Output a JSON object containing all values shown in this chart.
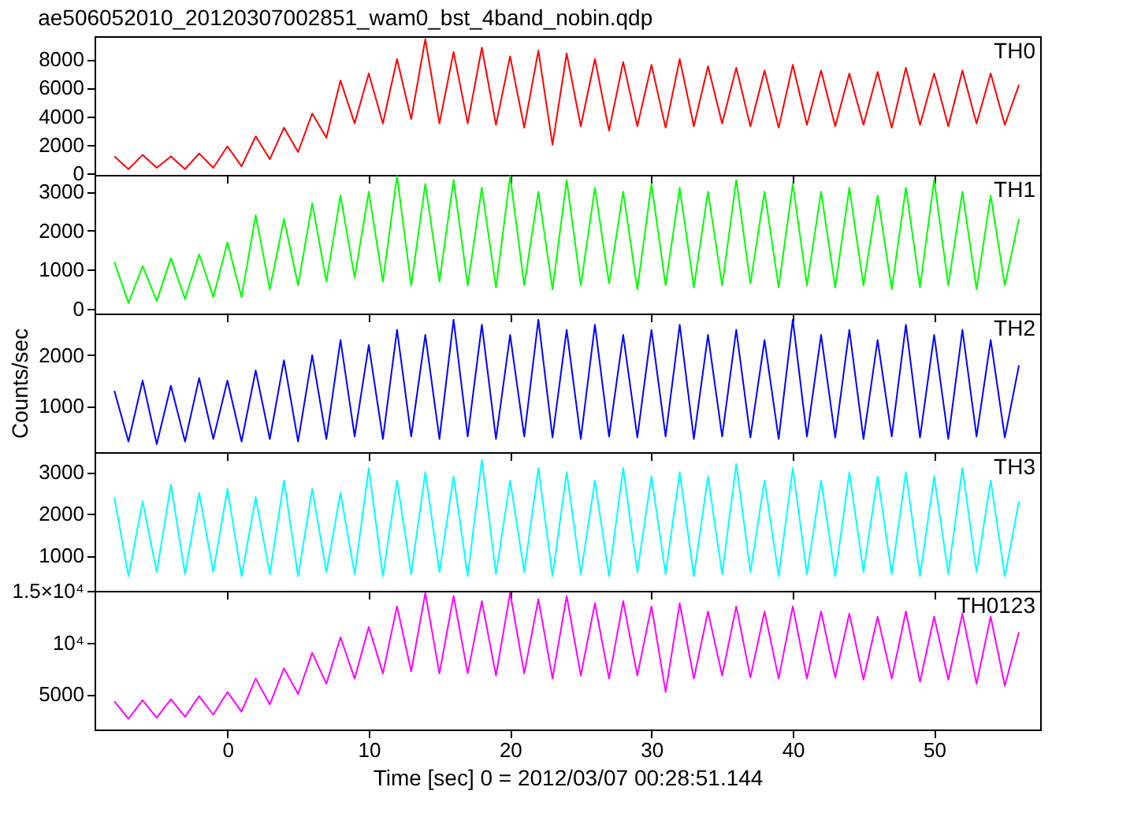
{
  "chart_data": [
    {
      "type": "line",
      "title": "ae506052010_20120307002851_wam0_bst_4band_nobin.qdp",
      "xlim": [
        -9.4,
        57.5
      ],
      "xticks": [
        0,
        10,
        20,
        30,
        40,
        50
      ],
      "ylim": [
        -100,
        9600
      ],
      "yticks": [
        0,
        2000,
        4000,
        6000,
        8000
      ],
      "tick_labels": "y",
      "x": [
        -8,
        -7,
        -6,
        -5,
        -4,
        -3,
        -2,
        -1,
        0,
        1,
        2,
        3,
        4,
        5,
        6,
        7,
        8,
        9,
        10,
        11,
        12,
        13,
        14,
        15,
        16,
        17,
        18,
        19,
        20,
        21,
        22,
        23,
        24,
        25,
        26,
        27,
        28,
        29,
        30,
        31,
        32,
        33,
        34,
        35,
        36,
        37,
        38,
        39,
        40,
        41,
        42,
        43,
        44,
        45,
        46,
        47,
        48,
        49,
        50,
        51,
        52,
        53,
        54,
        55,
        56
      ],
      "series": [
        {
          "name": "TH0",
          "color": "#ff0000",
          "values": [
            1200,
            300,
            1300,
            400,
            1200,
            300,
            1400,
            400,
            1900,
            500,
            2600,
            1000,
            3200,
            1500,
            4200,
            2500,
            6500,
            3500,
            7000,
            3500,
            8000,
            3800,
            9400,
            3500,
            8500,
            3500,
            8800,
            3400,
            8200,
            3200,
            8600,
            2000,
            8400,
            3300,
            8000,
            3000,
            7800,
            3300,
            7600,
            3200,
            8000,
            3300,
            7500,
            3500,
            7400,
            3300,
            7200,
            3200,
            7600,
            3400,
            7200,
            3300,
            7000,
            3400,
            7100,
            3200,
            7400,
            3400,
            7000,
            3300,
            7200,
            3500,
            7000,
            3400,
            6200
          ]
        }
      ]
    },
    {
      "type": "line",
      "xlim": [
        -9.4,
        57.5
      ],
      "xticks": [
        0,
        10,
        20,
        30,
        40,
        50
      ],
      "ylim": [
        -120,
        3430
      ],
      "yticks": [
        0,
        1000,
        2000,
        3000
      ],
      "tick_labels": "y",
      "x": [
        -8,
        -7,
        -6,
        -5,
        -4,
        -3,
        -2,
        -1,
        0,
        1,
        2,
        3,
        4,
        5,
        6,
        7,
        8,
        9,
        10,
        11,
        12,
        13,
        14,
        15,
        16,
        17,
        18,
        19,
        20,
        21,
        22,
        23,
        24,
        25,
        26,
        27,
        28,
        29,
        30,
        31,
        32,
        33,
        34,
        35,
        36,
        37,
        38,
        39,
        40,
        41,
        42,
        43,
        44,
        45,
        46,
        47,
        48,
        49,
        50,
        51,
        52,
        53,
        54,
        55,
        56
      ],
      "series": [
        {
          "name": "TH1",
          "color": "#00ff00",
          "values": [
            1200,
            150,
            1100,
            200,
            1300,
            250,
            1400,
            300,
            1700,
            300,
            2400,
            500,
            2300,
            600,
            2700,
            700,
            2900,
            800,
            3000,
            700,
            3400,
            600,
            3200,
            700,
            3300,
            600,
            3100,
            550,
            3400,
            600,
            3000,
            500,
            3300,
            600,
            3100,
            650,
            3000,
            500,
            3200,
            600,
            3100,
            550,
            3000,
            600,
            3300,
            650,
            3000,
            550,
            3200,
            600,
            3000,
            550,
            3100,
            600,
            2900,
            500,
            3100,
            550,
            3300,
            600,
            3000,
            500,
            2900,
            600,
            2300
          ]
        }
      ]
    },
    {
      "type": "line",
      "ylabel": "Counts/sec",
      "xlim": [
        -9.4,
        57.5
      ],
      "xticks": [
        0,
        10,
        20,
        30,
        40,
        50
      ],
      "ylim": [
        90,
        2820
      ],
      "yticks": [
        1000,
        2000
      ],
      "tick_labels": "y",
      "x": [
        -8,
        -7,
        -6,
        -5,
        -4,
        -3,
        -2,
        -1,
        0,
        1,
        2,
        3,
        4,
        5,
        6,
        7,
        8,
        9,
        10,
        11,
        12,
        13,
        14,
        15,
        16,
        17,
        18,
        19,
        20,
        21,
        22,
        23,
        24,
        25,
        26,
        27,
        28,
        29,
        30,
        31,
        32,
        33,
        34,
        35,
        36,
        37,
        38,
        39,
        40,
        41,
        42,
        43,
        44,
        45,
        46,
        47,
        48,
        49,
        50,
        51,
        52,
        53,
        54,
        55,
        56
      ],
      "series": [
        {
          "name": "TH2",
          "color": "#0000ff",
          "values": [
            1300,
            300,
            1500,
            250,
            1400,
            300,
            1550,
            350,
            1500,
            300,
            1700,
            350,
            1900,
            300,
            2000,
            350,
            2300,
            400,
            2200,
            350,
            2500,
            400,
            2400,
            350,
            2700,
            400,
            2600,
            350,
            2400,
            400,
            2700,
            380,
            2500,
            350,
            2600,
            400,
            2400,
            380,
            2500,
            400,
            2600,
            350,
            2400,
            400,
            2500,
            380,
            2300,
            350,
            2700,
            400,
            2400,
            380,
            2500,
            350,
            2300,
            400,
            2600,
            380,
            2400,
            350,
            2500,
            400,
            2300,
            380,
            1800
          ]
        }
      ]
    },
    {
      "type": "line",
      "xlim": [
        -9.4,
        57.5
      ],
      "xticks": [
        0,
        10,
        20,
        30,
        40,
        50
      ],
      "ylim": [
        150,
        3480
      ],
      "yticks": [
        1000,
        2000,
        3000
      ],
      "tick_labels": "y",
      "x": [
        -8,
        -7,
        -6,
        -5,
        -4,
        -3,
        -2,
        -1,
        0,
        1,
        2,
        3,
        4,
        5,
        6,
        7,
        8,
        9,
        10,
        11,
        12,
        13,
        14,
        15,
        16,
        17,
        18,
        19,
        20,
        21,
        22,
        23,
        24,
        25,
        26,
        27,
        28,
        29,
        30,
        31,
        32,
        33,
        34,
        35,
        36,
        37,
        38,
        39,
        40,
        41,
        42,
        43,
        44,
        45,
        46,
        47,
        48,
        49,
        50,
        51,
        52,
        53,
        54,
        55,
        56
      ],
      "series": [
        {
          "name": "TH3",
          "color": "#00ffff",
          "values": [
            2400,
            500,
            2300,
            600,
            2700,
            550,
            2500,
            600,
            2600,
            500,
            2400,
            550,
            2800,
            500,
            2600,
            600,
            2500,
            550,
            3100,
            500,
            2800,
            550,
            3000,
            600,
            2900,
            500,
            3300,
            550,
            2800,
            600,
            3100,
            500,
            3000,
            550,
            2800,
            500,
            3100,
            600,
            2900,
            550,
            3000,
            500,
            2900,
            550,
            3200,
            600,
            2800,
            500,
            3100,
            550,
            2800,
            500,
            3000,
            600,
            2900,
            550,
            3000,
            500,
            2900,
            550,
            3100,
            600,
            2800,
            500,
            2300
          ]
        }
      ]
    },
    {
      "type": "line",
      "xlabel": "Time [sec] 0 = 2012/03/07 00:28:51.144",
      "xlim": [
        -9.4,
        57.5
      ],
      "xticks": [
        0,
        10,
        20,
        30,
        40,
        50
      ],
      "ylim": [
        1570,
        15000
      ],
      "yticks": [
        5000,
        {
          "value": 10000,
          "label": "10⁴"
        },
        {
          "value": 15000,
          "label": "1.5×10⁴"
        }
      ],
      "x": [
        -8,
        -7,
        -6,
        -5,
        -4,
        -3,
        -2,
        -1,
        0,
        1,
        2,
        3,
        4,
        5,
        6,
        7,
        8,
        9,
        10,
        11,
        12,
        13,
        14,
        15,
        16,
        17,
        18,
        19,
        20,
        21,
        22,
        23,
        24,
        25,
        26,
        27,
        28,
        29,
        30,
        31,
        32,
        33,
        34,
        35,
        36,
        37,
        38,
        39,
        40,
        41,
        42,
        43,
        44,
        45,
        46,
        47,
        48,
        49,
        50,
        51,
        52,
        53,
        54,
        55,
        56
      ],
      "series": [
        {
          "name": "TH0123",
          "color": "#ff00ff",
          "values": [
            4300,
            2600,
            4400,
            2700,
            4500,
            2800,
            4800,
            3000,
            5200,
            3300,
            6500,
            4000,
            7500,
            5000,
            9000,
            6000,
            10500,
            6500,
            11500,
            7000,
            13500,
            7200,
            14800,
            7000,
            14500,
            7000,
            14000,
            6800,
            14800,
            7000,
            14200,
            6500,
            14500,
            6800,
            13800,
            6500,
            14000,
            6800,
            13500,
            5200,
            13800,
            6500,
            13000,
            6800,
            13500,
            6600,
            13000,
            6500,
            13500,
            6500,
            13000,
            6600,
            12800,
            6400,
            12500,
            6500,
            13000,
            6200,
            12500,
            6400,
            12800,
            6000,
            12500,
            5800,
            11000
          ]
        }
      ]
    }
  ]
}
